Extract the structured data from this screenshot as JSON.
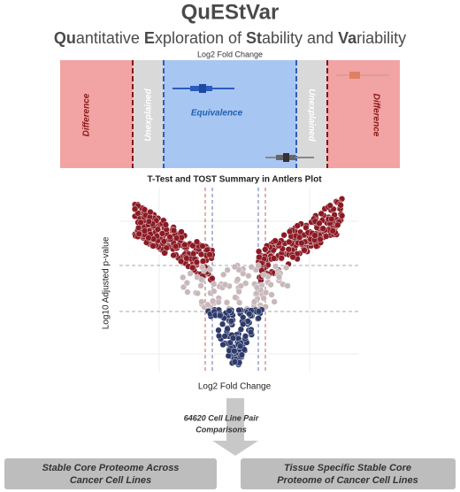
{
  "header": {
    "title": "QuEStVar",
    "subtitle_parts": [
      {
        "text": "Qu",
        "bold": true
      },
      {
        "text": "antitative ",
        "bold": false
      },
      {
        "text": "E",
        "bold": true
      },
      {
        "text": "xploration of ",
        "bold": false
      },
      {
        "text": "St",
        "bold": true
      },
      {
        "text": "ability and ",
        "bold": false
      },
      {
        "text": "Va",
        "bold": true
      },
      {
        "text": "riability",
        "bold": false
      }
    ]
  },
  "zones": {
    "axis_label": "Log2 Fold Change",
    "left_difference": "Difference",
    "left_unexplained": "Unexplained",
    "equivalence": "Equivalence",
    "right_unexplained": "Unexplained",
    "right_difference": "Difference"
  },
  "antlers": {
    "title": "T-Test and TOST Summary in Antlers Plot",
    "y_label": "Log10 Adjusted p-value",
    "x_label": "Log2 Fold Change"
  },
  "flow": {
    "lines": [
      "64620 Cell Line Pair",
      "Comparisons"
    ]
  },
  "outputs": [
    {
      "lines": [
        "Stable Core Proteome Across",
        "Cancer Cell Lines"
      ]
    },
    {
      "lines": [
        "Tissue Specific Stable Core",
        "Proteome of Cancer Cell Lines"
      ]
    }
  ]
}
